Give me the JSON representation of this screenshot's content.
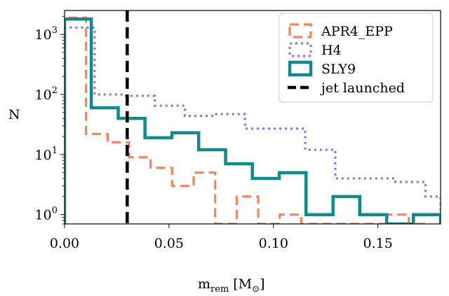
{
  "chart_data": {
    "type": "histogram",
    "xlabel": "m",
    "xlabel_sub": "rem",
    "xlabel_unit": "[M",
    "xlabel_unit_sym": "⊙",
    "xlabel_unit_close": "]",
    "ylabel": "N",
    "xlim": [
      0,
      0.18
    ],
    "ylim_log": [
      0.7,
      2500
    ],
    "yscale": "log",
    "x_ticks": [
      {
        "value": 0.0,
        "label": "0.00"
      },
      {
        "value": 0.05,
        "label": "0.05"
      },
      {
        "value": 0.1,
        "label": "0.10"
      },
      {
        "value": 0.15,
        "label": "0.15"
      }
    ],
    "y_ticks": [
      {
        "value": 1,
        "base": "10",
        "exp": "0"
      },
      {
        "value": 10,
        "base": "10",
        "exp": "1"
      },
      {
        "value": 100,
        "base": "10",
        "exp": "2"
      },
      {
        "value": 1000,
        "base": "10",
        "exp": "3"
      }
    ],
    "bin_edges": [
      0.0,
      0.0055,
      0.011,
      0.0165,
      0.022,
      0.0275,
      0.033,
      0.0385,
      0.044,
      0.0495,
      0.055,
      0.0605,
      0.066,
      0.0715,
      0.077,
      0.0825,
      0.088,
      0.0935,
      0.099,
      0.1045,
      0.11,
      0.1155,
      0.121,
      0.1265,
      0.132,
      0.1375,
      0.143,
      0.1485,
      0.154,
      0.1595,
      0.165,
      0.1705,
      0.176,
      0.1815
    ],
    "series": [
      {
        "name": "APR4_EPP",
        "color": "#f4845f",
        "style": "dashed",
        "bin_edges": [
          0.0,
          0.0103,
          0.0206,
          0.0309,
          0.0412,
          0.0515,
          0.0618,
          0.0721,
          0.0824,
          0.0927,
          0.103,
          0.1133,
          0.1236,
          0.1339,
          0.1442,
          0.1545,
          0.1648,
          0.1751
        ],
        "counts": [
          1900,
          22,
          16,
          9,
          6,
          3,
          5,
          0.7,
          2,
          0.7,
          1,
          0.7,
          0.7,
          0.7,
          0.7,
          1,
          0.7
        ]
      },
      {
        "name": "H4",
        "color": "#9370db",
        "style": "dotted",
        "bin_edges": [
          0.0,
          0.0144,
          0.0288,
          0.0432,
          0.0576,
          0.072,
          0.0864,
          0.1008,
          0.1152,
          0.1296,
          0.144,
          0.1584,
          0.1728,
          0.18
        ],
        "counts": [
          1300,
          100,
          95,
          65,
          44,
          47,
          27,
          27,
          12,
          4,
          4,
          3.5,
          2
        ]
      },
      {
        "name": "SLY9",
        "color": "#128a8a",
        "style": "solid",
        "bin_edges": [
          0.0,
          0.0128,
          0.0257,
          0.0385,
          0.0514,
          0.0642,
          0.0771,
          0.0899,
          0.1028,
          0.1156,
          0.1285,
          0.1413,
          0.1542,
          0.167,
          0.18
        ],
        "counts": [
          1800,
          60,
          40,
          19,
          23,
          12,
          7,
          4,
          5,
          1,
          2,
          1,
          0.7,
          1
        ]
      }
    ],
    "vline": {
      "x": 0.03,
      "name": "jet launched",
      "color": "#000000",
      "style": "dashed"
    },
    "legend": {
      "position": "top-right"
    }
  }
}
